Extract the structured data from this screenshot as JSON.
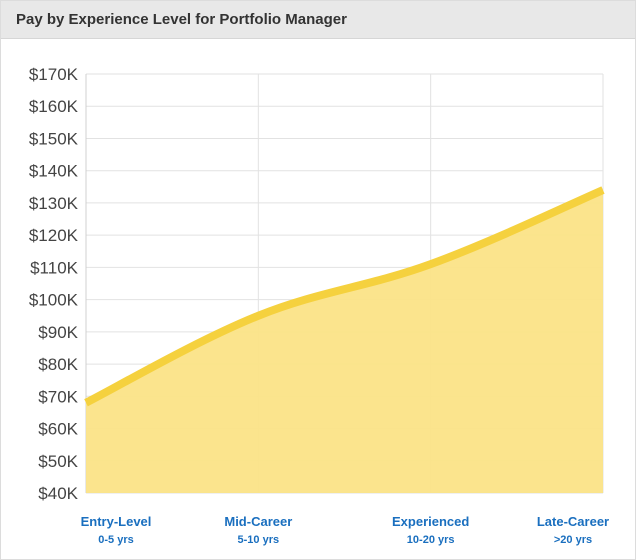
{
  "header": {
    "title": "Pay by Experience Level for Portfolio Manager"
  },
  "chart_data": {
    "type": "area",
    "title": "Pay by Experience Level for Portfolio Manager",
    "categories": [
      "Entry-Level",
      "Mid-Career",
      "Experienced",
      "Late-Career"
    ],
    "category_sublabels": [
      "0-5 yrs",
      "5-10 yrs",
      "10-20 yrs",
      ">20 yrs"
    ],
    "values": [
      68000,
      95000,
      111000,
      134000
    ],
    "ylim": [
      40000,
      170000
    ],
    "ytick_step": 10000,
    "ytick_labels": [
      "$40K",
      "$50K",
      "$60K",
      "$70K",
      "$80K",
      "$90K",
      "$100K",
      "$110K",
      "$120K",
      "$130K",
      "$140K",
      "$150K",
      "$160K",
      "$170K"
    ],
    "grid": true,
    "line_color": "#f5d13e",
    "fill_color": "#fbe387"
  }
}
